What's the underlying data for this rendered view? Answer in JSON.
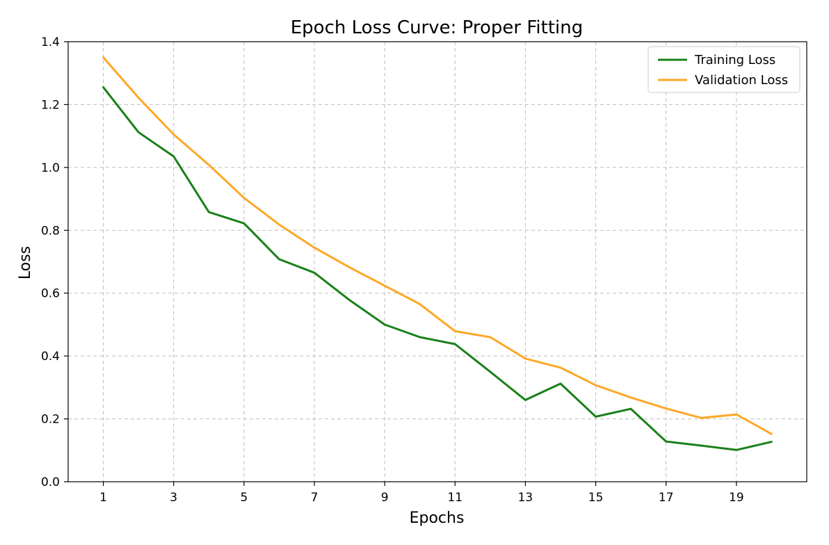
{
  "chart_data": {
    "type": "line",
    "title": "Epoch Loss Curve: Proper Fitting",
    "xlabel": "Epochs",
    "ylabel": "Loss",
    "x": [
      1,
      2,
      3,
      4,
      5,
      6,
      7,
      8,
      9,
      10,
      11,
      12,
      13,
      14,
      15,
      16,
      17,
      18,
      19,
      20
    ],
    "xlim": [
      0.0,
      21.0
    ],
    "ylim": [
      0.0,
      1.4
    ],
    "xticks": [
      1,
      3,
      5,
      7,
      9,
      11,
      13,
      15,
      17,
      19
    ],
    "xtick_labels": [
      "1",
      "3",
      "5",
      "7",
      "9",
      "11",
      "13",
      "15",
      "17",
      "19"
    ],
    "yticks": [
      0.0,
      0.2,
      0.4,
      0.6,
      0.8,
      1.0,
      1.2,
      1.4
    ],
    "ytick_labels": [
      "0.0",
      "0.2",
      "0.4",
      "0.6",
      "0.8",
      "1.0",
      "1.2",
      "1.4"
    ],
    "grid": true,
    "legend_position": "top-right",
    "series": [
      {
        "name": "Training Loss",
        "color": "#1a801a",
        "values": [
          1.255,
          1.112,
          1.035,
          0.858,
          0.822,
          0.708,
          0.665,
          0.578,
          0.5,
          0.46,
          0.438,
          0.35,
          0.26,
          0.312,
          0.207,
          0.232,
          0.128,
          0.115,
          0.101,
          0.127
        ]
      },
      {
        "name": "Validation Loss",
        "color": "#ffa726",
        "values": [
          1.35,
          1.222,
          1.105,
          1.008,
          0.903,
          0.818,
          0.745,
          0.682,
          0.624,
          0.565,
          0.479,
          0.46,
          0.392,
          0.363,
          0.307,
          0.268,
          0.233,
          0.203,
          0.214,
          0.152
        ]
      }
    ]
  }
}
